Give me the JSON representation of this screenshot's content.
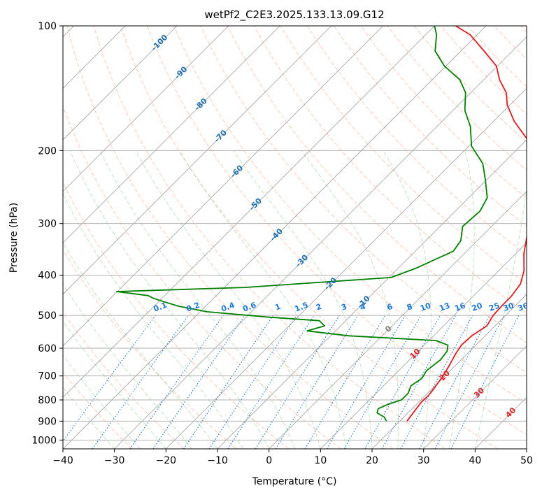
{
  "chart_data": {
    "type": "line",
    "title": "wetPf2_C2E3.2025.133.13.09.G12",
    "xlabel": "Temperature (°C)",
    "ylabel": "Pressure (hPa)",
    "xlim": [
      -40,
      50
    ],
    "ylim": [
      1050,
      100
    ],
    "y_scale": "log",
    "grid": true,
    "x_ticks": [
      -40,
      -30,
      -20,
      -10,
      0,
      10,
      20,
      30,
      40,
      50
    ],
    "x_tick_labels": [
      "−40",
      "−30",
      "−20",
      "−10",
      "0",
      "10",
      "20",
      "30",
      "40",
      "50"
    ],
    "y_ticks": [
      100,
      200,
      300,
      400,
      500,
      600,
      700,
      800,
      900,
      1000
    ],
    "y_tick_labels": [
      "100",
      "200",
      "300",
      "400",
      "500",
      "600",
      "700",
      "800",
      "900",
      "1000"
    ],
    "colors": {
      "temperature": "#e31a1c",
      "dewpoint": "#008000",
      "grid": "#b0b0b0",
      "isotherm": "#808080",
      "dry_adiabat": "#ff9e80",
      "moist_adiabat": "#8fcc8f",
      "mixing_ratio": "#1f78d4",
      "isotherm_label": "#1f6fb0",
      "dry_adiabat_label": "#d62728",
      "zero_label": "#808080"
    },
    "series": [
      {
        "key": "temperature",
        "points": [
          [
            21.4,
            900
          ],
          [
            20.9,
            850
          ],
          [
            20.5,
            810
          ],
          [
            20.6,
            780
          ],
          [
            20.3,
            750
          ],
          [
            19.6,
            700
          ],
          [
            18.8,
            660
          ],
          [
            17.8,
            620
          ],
          [
            17.2,
            590
          ],
          [
            17.4,
            560
          ],
          [
            18.4,
            530
          ],
          [
            17.6,
            500
          ],
          [
            17.4,
            470
          ],
          [
            17.4,
            450
          ],
          [
            16.8,
            420
          ],
          [
            14.9,
            390
          ],
          [
            11.6,
            355
          ],
          [
            8.6,
            320
          ],
          [
            5.8,
            290
          ],
          [
            2.3,
            260
          ],
          [
            0.6,
            240
          ],
          [
            -4.6,
            215
          ],
          [
            -9.3,
            190
          ],
          [
            -16.0,
            170
          ],
          [
            -20.6,
            155
          ],
          [
            -23.1,
            145
          ],
          [
            -26.9,
            135
          ],
          [
            -30.2,
            125
          ],
          [
            -35.5,
            115
          ],
          [
            -41.4,
            105
          ],
          [
            -45.9,
            100
          ]
        ]
      },
      {
        "key": "dewpoint",
        "points": [
          [
            17.4,
            900
          ],
          [
            16.2,
            880
          ],
          [
            14.0,
            860
          ],
          [
            13.4,
            840
          ],
          [
            14.4,
            820
          ],
          [
            16.2,
            800
          ],
          [
            16.2,
            770
          ],
          [
            15.3,
            740
          ],
          [
            16.0,
            710
          ],
          [
            15.4,
            680
          ],
          [
            16.0,
            640
          ],
          [
            15.6,
            610
          ],
          [
            14.6,
            590
          ],
          [
            11.4,
            575
          ],
          [
            -6.5,
            560
          ],
          [
            -15.5,
            545
          ],
          [
            -13.1,
            530
          ],
          [
            -15.1,
            515
          ],
          [
            -25.5,
            505
          ],
          [
            -38.7,
            490
          ],
          [
            -45.3,
            475
          ],
          [
            -49.1,
            463
          ],
          [
            -51.6,
            455
          ],
          [
            -53.2,
            448
          ],
          [
            -60.1,
            438
          ],
          [
            -36.0,
            428
          ],
          [
            -9.6,
            405
          ],
          [
            -6.6,
            385
          ],
          [
            -4.9,
            370
          ],
          [
            -2.6,
            350
          ],
          [
            -3.2,
            330
          ],
          [
            -5.6,
            305
          ],
          [
            -5.2,
            280
          ],
          [
            -6.4,
            260
          ],
          [
            -10.3,
            235
          ],
          [
            -13.9,
            215
          ],
          [
            -19.5,
            195
          ],
          [
            -23.5,
            175
          ],
          [
            -27.7,
            160
          ],
          [
            -31.0,
            145
          ],
          [
            -34.6,
            135
          ],
          [
            -40.3,
            125
          ],
          [
            -45.0,
            115
          ],
          [
            -47.9,
            105
          ],
          [
            -50.0,
            100
          ]
        ]
      }
    ],
    "isotherm_labels": [
      "-100",
      "-90",
      "-80",
      "-70",
      "-60",
      "-50",
      "-40",
      "-30",
      "-20",
      "-10",
      "0",
      "10"
    ],
    "dry_adiabat_labels": [
      "10",
      "20",
      "30",
      "40"
    ],
    "mixing_ratio_labels": [
      "0.1",
      "0.2",
      "0.4",
      "0.6",
      "1",
      "1.5",
      "2",
      "3",
      "4",
      "6",
      "8",
      "10",
      "13",
      "16",
      "20",
      "25",
      "30",
      "36"
    ]
  }
}
